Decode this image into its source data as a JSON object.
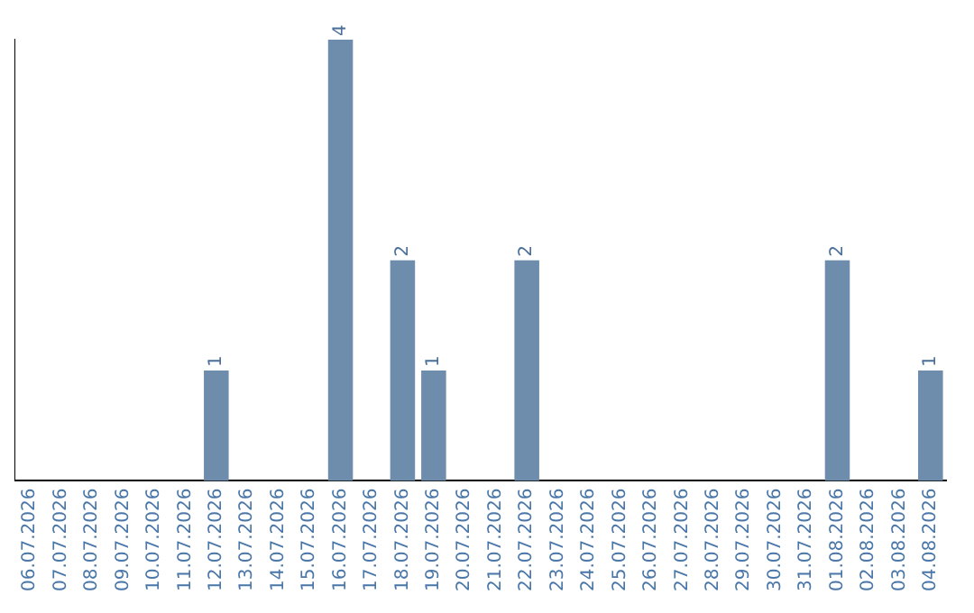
{
  "chart_data": {
    "type": "bar",
    "categories": [
      "06.07.2026",
      "07.07.2026",
      "08.07.2026",
      "09.07.2026",
      "10.07.2026",
      "11.07.2026",
      "12.07.2026",
      "13.07.2026",
      "14.07.2026",
      "15.07.2026",
      "16.07.2026",
      "17.07.2026",
      "18.07.2026",
      "19.07.2026",
      "20.07.2026",
      "21.07.2026",
      "22.07.2026",
      "23.07.2026",
      "24.07.2026",
      "25.07.2026",
      "26.07.2026",
      "27.07.2026",
      "28.07.2026",
      "29.07.2026",
      "30.07.2026",
      "31.07.2026",
      "01.08.2026",
      "02.08.2026",
      "03.08.2026",
      "04.08.2026"
    ],
    "values": [
      0,
      0,
      0,
      0,
      0,
      0,
      1,
      0,
      0,
      0,
      4,
      0,
      2,
      1,
      0,
      0,
      2,
      0,
      0,
      0,
      0,
      0,
      0,
      0,
      0,
      0,
      2,
      0,
      0,
      1
    ],
    "value_labels": [
      null,
      null,
      null,
      null,
      null,
      null,
      "1",
      null,
      null,
      null,
      "4",
      null,
      "2",
      "1",
      null,
      null,
      "2",
      null,
      null,
      null,
      null,
      null,
      null,
      null,
      null,
      null,
      "2",
      null,
      null,
      "1"
    ],
    "color": "#6e8cab",
    "grid": false,
    "legend": false,
    "tick_labels": "x"
  }
}
